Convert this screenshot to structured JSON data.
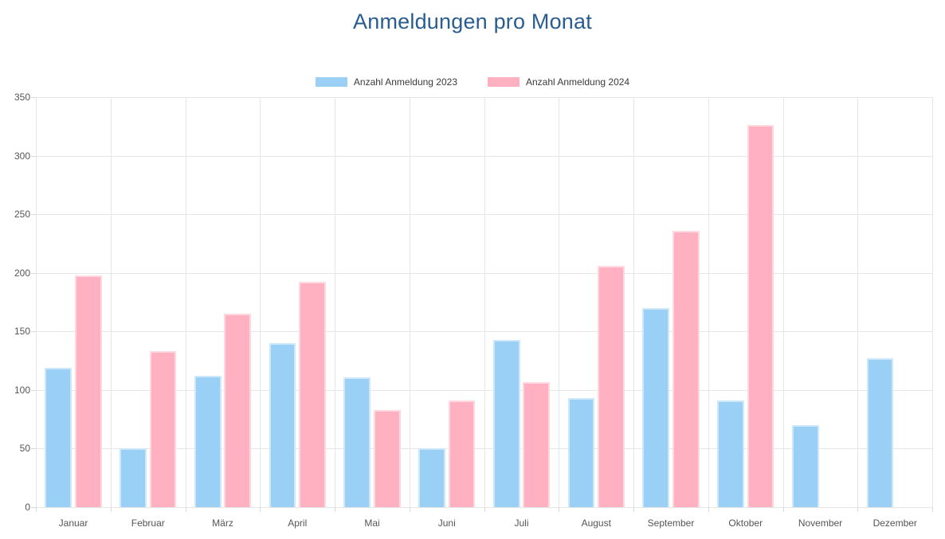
{
  "page": {
    "title": "Anmeldungen pro Monat"
  },
  "chart_data": {
    "type": "bar",
    "title": "Anmeldungen pro Monat",
    "categories": [
      "Januar",
      "Februar",
      "März",
      "April",
      "Mai",
      "Juni",
      "Juli",
      "August",
      "September",
      "Oktober",
      "November",
      "Dezember"
    ],
    "series": [
      {
        "name": "Anzahl Anmeldung 2023",
        "color": "#9ad0f5",
        "border_color": "#cde8fb",
        "values": [
          119,
          50,
          112,
          140,
          111,
          50,
          143,
          93,
          170,
          91,
          70,
          127
        ]
      },
      {
        "name": "Anzahl Anmeldung 2024",
        "color": "#ffb1c1",
        "border_color": "#ffd8e0",
        "values": [
          198,
          133,
          165,
          192,
          83,
          91,
          107,
          206,
          236,
          326,
          0,
          0
        ]
      }
    ],
    "xlabel": "",
    "ylabel": "",
    "ylim": [
      0,
      350
    ],
    "yticks": [
      0,
      50,
      100,
      150,
      200,
      250,
      300,
      350
    ],
    "grid": true,
    "legend_position": "top",
    "title_color": "#2a5d8f"
  }
}
